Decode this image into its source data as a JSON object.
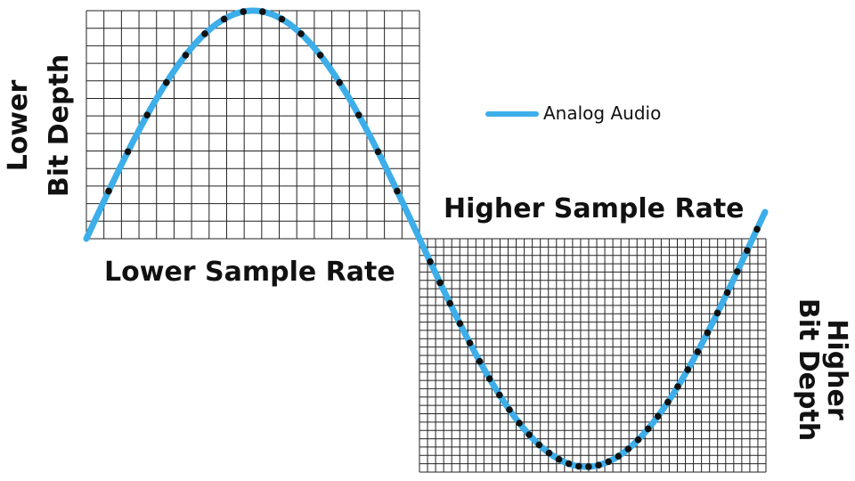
{
  "labels": {
    "lower_sample_rate": "Lower Sample Rate",
    "higher_sample_rate": "Higher Sample Rate",
    "lower_bit_depth_line1": "Lower",
    "lower_bit_depth_line2": "Bit Depth",
    "higher_bit_depth_line1": "Higher",
    "higher_bit_depth_line2": "Bit Depth"
  },
  "legend": {
    "analog_label": "Analog Audio",
    "analog_color": "#3daee9"
  },
  "colors": {
    "grid": "#222222",
    "samples": "#111111",
    "background": "#ffffff"
  },
  "grids": {
    "low_resolution": {
      "columns": 19,
      "rows": 13
    },
    "high_resolution": {
      "columns": 43,
      "rows": 28
    }
  },
  "samples": {
    "low_resolution_count": 16,
    "high_resolution_count": 34
  }
}
